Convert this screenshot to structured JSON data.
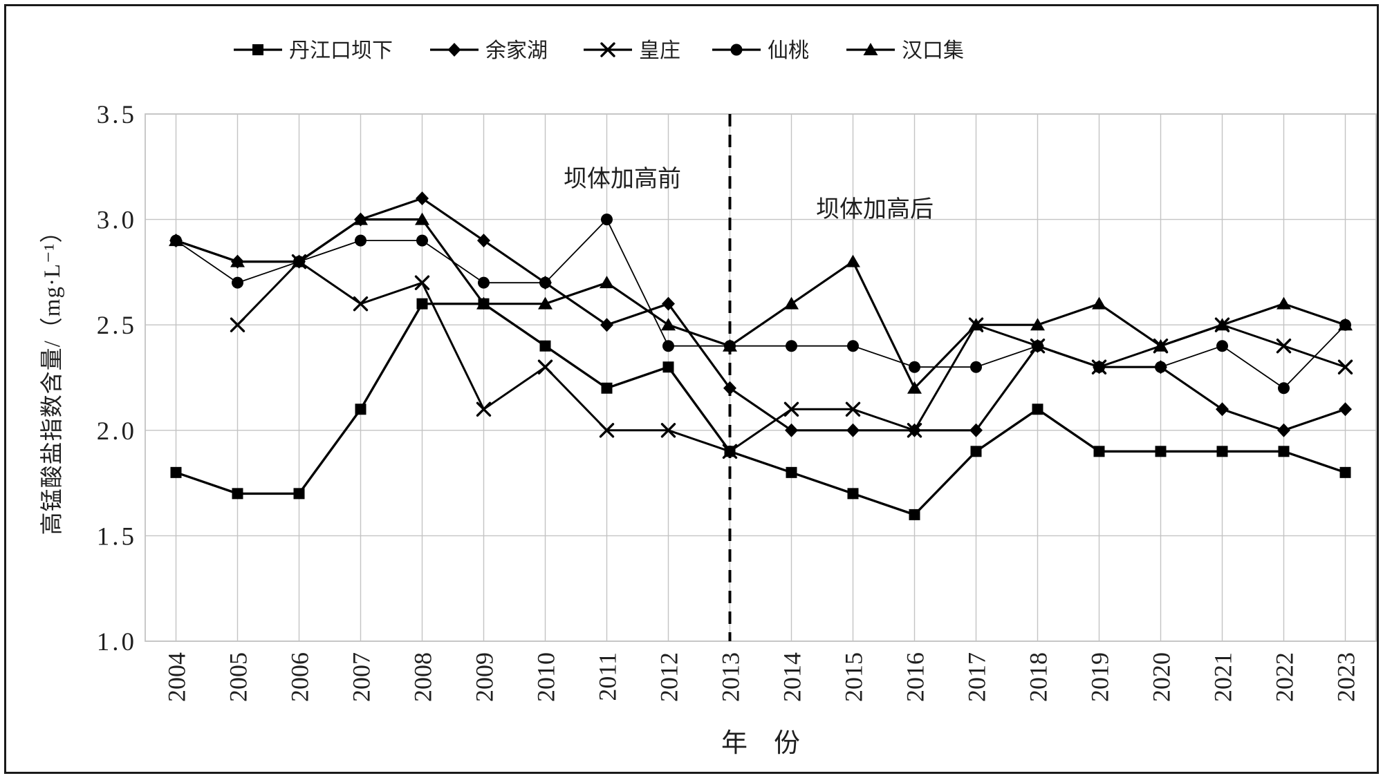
{
  "figure": {
    "y_axis_title": "高锰酸盐指数含量/（mg·L⁻¹）",
    "x_axis_title": "年　份",
    "annotation_before": "坝体加高前",
    "annotation_after": "坝体加高后",
    "y_tick_labels": [
      "3.5",
      "3.0",
      "2.5",
      "2.0",
      "1.5",
      "1.0"
    ],
    "x_tick_labels": [
      "2004",
      "2005",
      "2006",
      "2007",
      "2008",
      "2009",
      "2010",
      "2011",
      "2012",
      "2013",
      "2014",
      "2015",
      "2016",
      "2017",
      "2018",
      "2019",
      "2020",
      "2021",
      "2022",
      "2023"
    ]
  },
  "legend": {
    "items": [
      {
        "label": "丹江口坝下",
        "marker": "square"
      },
      {
        "label": "余家湖",
        "marker": "diamond"
      },
      {
        "label": "皇庄",
        "marker": "x"
      },
      {
        "label": "仙桃",
        "marker": "circle"
      },
      {
        "label": "汉口集",
        "marker": "triangle"
      }
    ]
  },
  "colors": {
    "line": "#000000",
    "grid": "#c3c3c3",
    "text": "#1f1f1f",
    "background": "#ffffff"
  },
  "chart_data": {
    "type": "line",
    "title": "",
    "xlabel": "年　份",
    "ylabel": "高锰酸盐指数含量/（mg·L⁻¹）",
    "x": [
      2004,
      2005,
      2006,
      2007,
      2008,
      2009,
      2010,
      2011,
      2012,
      2013,
      2014,
      2015,
      2016,
      2017,
      2018,
      2019,
      2020,
      2021,
      2022,
      2023
    ],
    "ylim": [
      1.0,
      3.5
    ],
    "ytick_step": 0.5,
    "grid": true,
    "legend_position": "top",
    "dashed_vertical_line_x": 2013,
    "annotations": [
      {
        "text": "坝体加高前",
        "x": 2011.3,
        "y": 3.18,
        "side": "left-of-dashed-line"
      },
      {
        "text": "坝体加高后",
        "x": 2015.4,
        "y": 3.03,
        "side": "right-of-dashed-line"
      }
    ],
    "series": [
      {
        "name": "丹江口坝下",
        "marker": "square",
        "line_width": 3.4,
        "values": [
          1.8,
          1.7,
          1.7,
          2.1,
          2.6,
          2.6,
          2.4,
          2.2,
          2.3,
          1.9,
          1.8,
          1.7,
          1.6,
          1.9,
          2.1,
          1.9,
          1.9,
          1.9,
          1.9,
          1.8
        ]
      },
      {
        "name": "余家湖",
        "marker": "diamond",
        "line_width": 3.2,
        "values": [
          2.9,
          2.8,
          2.8,
          3.0,
          3.1,
          2.9,
          2.7,
          2.5,
          2.6,
          2.2,
          2.0,
          2.0,
          2.0,
          2.0,
          2.4,
          2.3,
          2.3,
          2.1,
          2.0,
          2.1
        ]
      },
      {
        "name": "皇庄",
        "marker": "x",
        "line_width": 3.0,
        "values": [
          null,
          2.5,
          2.8,
          2.6,
          2.7,
          2.1,
          2.3,
          2.0,
          2.0,
          1.9,
          2.1,
          2.1,
          2.0,
          2.5,
          2.4,
          2.3,
          2.4,
          2.5,
          2.4,
          2.3
        ]
      },
      {
        "name": "仙桃",
        "marker": "circle",
        "line_width": 1.8,
        "values": [
          2.9,
          2.7,
          2.8,
          2.9,
          2.9,
          2.7,
          2.7,
          3.0,
          2.4,
          2.4,
          2.4,
          2.4,
          2.3,
          2.3,
          2.4,
          2.3,
          2.3,
          2.4,
          2.2,
          2.5
        ]
      },
      {
        "name": "汉口集",
        "marker": "triangle",
        "line_width": 3.2,
        "values": [
          2.9,
          2.8,
          2.8,
          3.0,
          3.0,
          2.6,
          2.6,
          2.7,
          2.5,
          2.4,
          2.6,
          2.8,
          2.2,
          2.5,
          2.5,
          2.6,
          2.4,
          2.5,
          2.6,
          2.5
        ]
      }
    ]
  }
}
